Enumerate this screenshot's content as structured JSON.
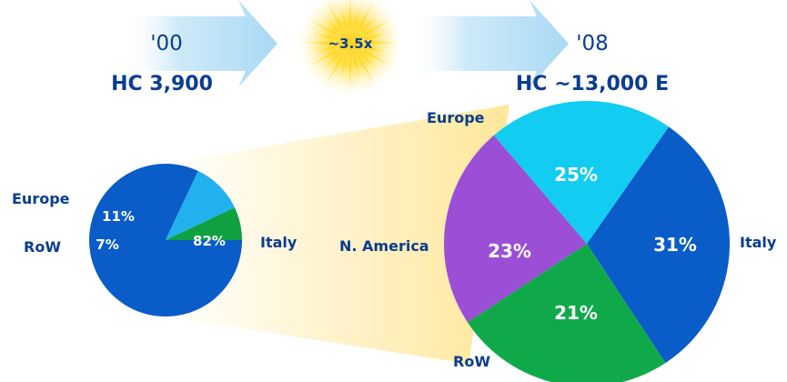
{
  "header": {
    "year_2000": "'00",
    "headcount_2000": "HC 3,900",
    "growth_multiplier": "~3.5x",
    "year_2008": "'08",
    "headcount_2008": "HC ~13,000 E"
  },
  "colors": {
    "arrow": "#bfe3f7",
    "sun": "#ffd400",
    "text": "#0a3d8f",
    "funnel": "#fff0b8",
    "slice_label": "#ffffff"
  },
  "chart_data": [
    {
      "type": "pie",
      "categories": [
        "Italy",
        "Europe",
        "RoW"
      ],
      "values": [
        82,
        11,
        7
      ],
      "value_labels": [
        "82%",
        "11%",
        "7%"
      ],
      "colors": [
        "#0a5cc8",
        "#22b0ee",
        "#0fa040"
      ],
      "labels": [
        "Italy",
        "Europe",
        "RoW"
      ]
    },
    {
      "type": "pie",
      "categories": [
        "Italy",
        "Europe",
        "N. America",
        "RoW"
      ],
      "values": [
        31,
        25,
        23,
        21
      ],
      "value_labels": [
        "31%",
        "25%",
        "23%",
        "21%"
      ],
      "colors": [
        "#0a5cc8",
        "#10a94a",
        "#9b4fd6",
        "#13ccf2"
      ],
      "labels": [
        "Italy",
        "Europe",
        "N. America",
        "RoW"
      ]
    }
  ]
}
